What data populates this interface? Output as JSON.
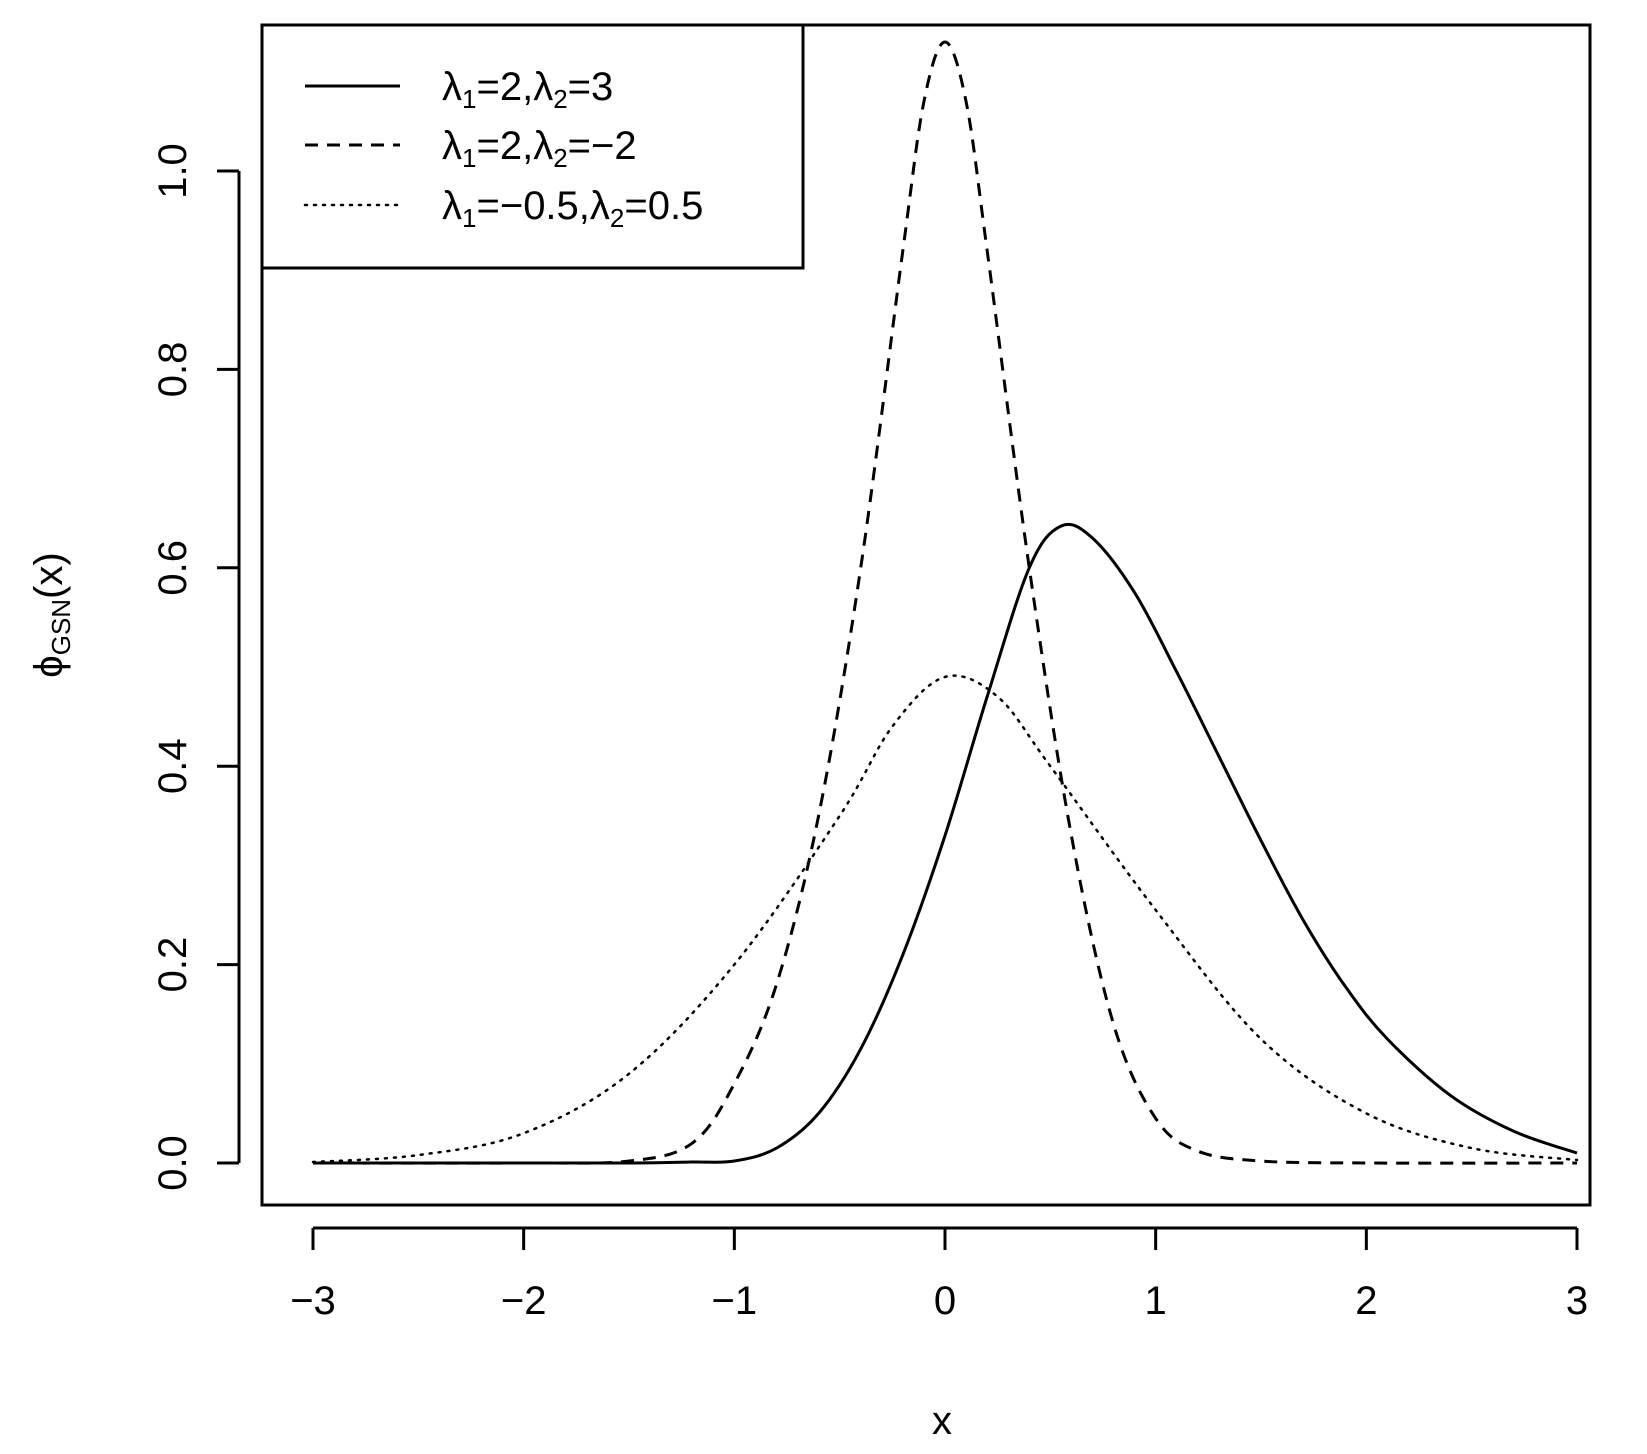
{
  "chart_data": {
    "type": "line",
    "xlabel": "x",
    "ylabel": "ϕGSN(x)",
    "xlim": [
      -3,
      3
    ],
    "ylim": [
      0,
      1.13
    ],
    "xticks": [
      -3,
      -2,
      -1,
      0,
      1,
      2,
      3
    ],
    "xtick_labels": [
      "−3",
      "−2",
      "−1",
      "0",
      "1",
      "2",
      "3"
    ],
    "yticks": [
      0.0,
      0.2,
      0.4,
      0.6,
      0.8,
      1.0
    ],
    "ytick_labels": [
      "0.0",
      "0.2",
      "0.4",
      "0.6",
      "0.8",
      "1.0"
    ],
    "grid": false,
    "legend_position": "top-left",
    "series": [
      {
        "name": "λ1=2,λ2=3",
        "style": "solid",
        "x": [
          -3,
          -2.5,
          -2,
          -1.5,
          -1.2,
          -1,
          -0.8,
          -0.6,
          -0.4,
          -0.2,
          0,
          0.2,
          0.4,
          0.55,
          0.7,
          0.9,
          1.1,
          1.3,
          1.5,
          1.7,
          1.9,
          2.1,
          2.4,
          2.7,
          3
        ],
        "y": [
          0,
          0,
          0,
          0,
          0.001,
          0.002,
          0.015,
          0.05,
          0.115,
          0.21,
          0.33,
          0.47,
          0.6,
          0.642,
          0.63,
          0.575,
          0.495,
          0.41,
          0.325,
          0.245,
          0.178,
          0.125,
          0.068,
          0.032,
          0.01
        ]
      },
      {
        "name": "λ1=2,λ2=−2",
        "style": "dashed",
        "x": [
          -3,
          -2,
          -1.5,
          -1.2,
          -1,
          -0.8,
          -0.6,
          -0.4,
          -0.2,
          -0.1,
          0,
          0.1,
          0.2,
          0.4,
          0.6,
          0.8,
          1,
          1.2,
          1.5,
          2,
          3
        ],
        "y": [
          0,
          0,
          0.002,
          0.02,
          0.08,
          0.18,
          0.35,
          0.6,
          0.92,
          1.07,
          1.13,
          1.07,
          0.92,
          0.6,
          0.33,
          0.14,
          0.045,
          0.012,
          0.002,
          0,
          0
        ]
      },
      {
        "name": "λ1=−0.5,λ2=0.5",
        "style": "dotted",
        "x": [
          -3,
          -2.5,
          -2,
          -1.5,
          -1,
          -0.5,
          -0.25,
          0,
          0.25,
          0.5,
          1,
          1.5,
          2,
          2.5,
          3
        ],
        "y": [
          0.001,
          0.008,
          0.03,
          0.09,
          0.2,
          0.35,
          0.44,
          0.49,
          0.47,
          0.4,
          0.255,
          0.125,
          0.05,
          0.015,
          0.003
        ]
      }
    ]
  },
  "legend": {
    "items": [
      {
        "lam1": "λ",
        "sub1": "1",
        "eq1": "=2,",
        "lam2": "λ",
        "sub2": "2",
        "eq2": "=3"
      },
      {
        "lam1": "λ",
        "sub1": "1",
        "eq1": "=2,",
        "lam2": "λ",
        "sub2": "2",
        "eq2": "=−2"
      },
      {
        "lam1": "λ",
        "sub1": "1",
        "eq1": "=−0.5,",
        "lam2": "λ",
        "sub2": "2",
        "eq2": "=0.5"
      }
    ]
  },
  "ylabel_parts": {
    "phi": "ϕ",
    "sub": "GSN",
    "rest": "(x)"
  }
}
